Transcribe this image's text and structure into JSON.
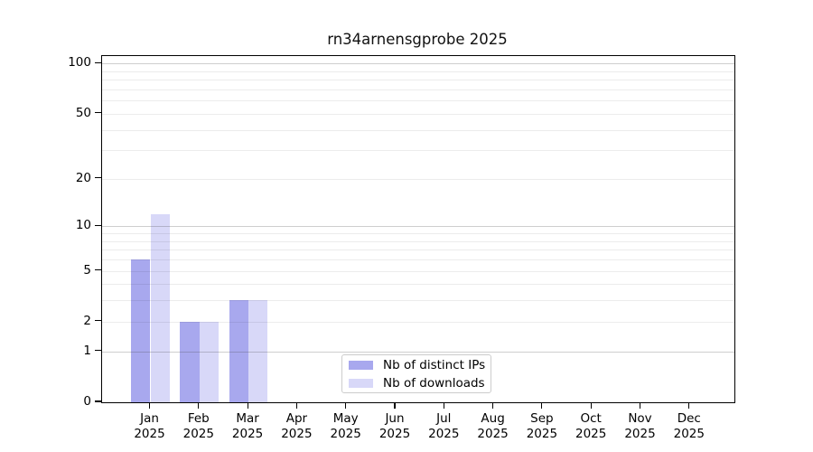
{
  "title": "rn34arnensgprobe 2025",
  "chart_data": {
    "type": "bar",
    "title": "rn34arnensgprobe 2025",
    "categories": [
      "Jan",
      "Feb",
      "Mar",
      "Apr",
      "May",
      "Jun",
      "Jul",
      "Aug",
      "Sep",
      "Oct",
      "Nov",
      "Dec"
    ],
    "year_label": "2025",
    "series": [
      {
        "name": "Nb of distinct IPs",
        "color": "#a8a8ee",
        "values": [
          6,
          2,
          3,
          0,
          0,
          0,
          0,
          0,
          0,
          0,
          0,
          0
        ]
      },
      {
        "name": "Nb of downloads",
        "color": "#d8d8f8",
        "values": [
          12,
          2,
          3,
          0,
          0,
          0,
          0,
          0,
          0,
          0,
          0,
          0
        ]
      }
    ],
    "yscale": "log1p",
    "ylim": [
      0,
      111
    ],
    "ytick_values": [
      0,
      1,
      2,
      5,
      10,
      20,
      50,
      100
    ],
    "ytick_labels": [
      "0",
      "1",
      "2",
      "5",
      "10",
      "20",
      "50",
      "100"
    ],
    "major_gridline_values": [
      1,
      10,
      100
    ],
    "minor_gridline_values": [
      2,
      3,
      4,
      5,
      6,
      7,
      8,
      9,
      20,
      30,
      40,
      50,
      60,
      70,
      80,
      90
    ],
    "grid": true,
    "legend_position": "lower center"
  }
}
